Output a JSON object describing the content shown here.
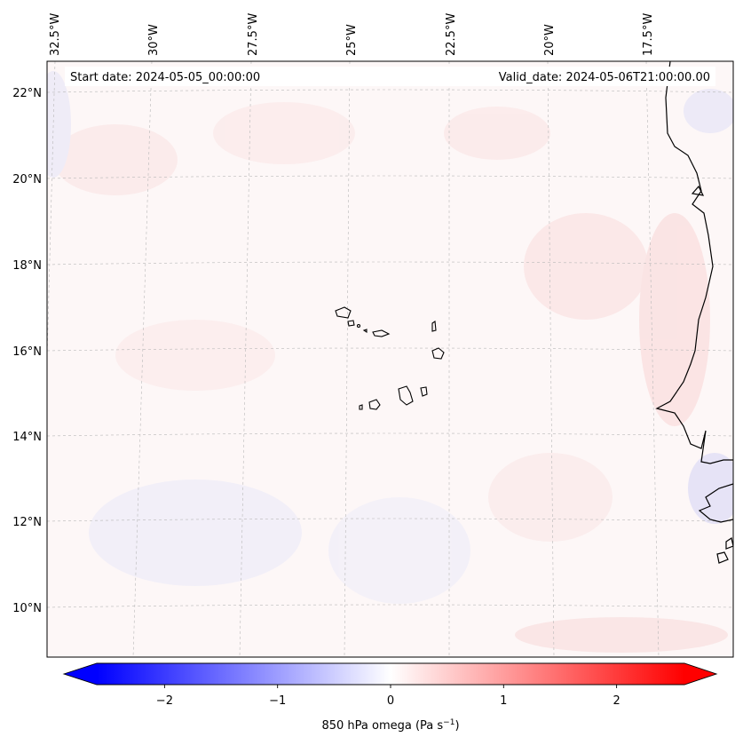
{
  "map": {
    "start_date": "Start date: 2024-05-05_00:00:00",
    "valid_date": "Valid_date: 2024-05-06T21:00:00.00",
    "lon_labels": [
      "32.5°W",
      "30°W",
      "27.5°W",
      "25°W",
      "22.5°W",
      "20°W",
      "17.5°W"
    ],
    "lat_labels": [
      "22°N",
      "20°N",
      "18°N",
      "16°N",
      "14°N",
      "12°N",
      "10°N"
    ]
  },
  "colorbar": {
    "label_prefix": "850 hPa omega (Pa s",
    "label_exponent": "−1",
    "label_suffix": ")",
    "ticks": [
      "−2",
      "−1",
      "0",
      "1",
      "2"
    ],
    "tick_values": [
      -2,
      -1,
      0,
      1,
      2
    ],
    "min": -2.6,
    "max": 2.6,
    "colors": {
      "negative": "#0000ff",
      "zero": "#ffffff",
      "positive": "#ff0000"
    }
  }
}
